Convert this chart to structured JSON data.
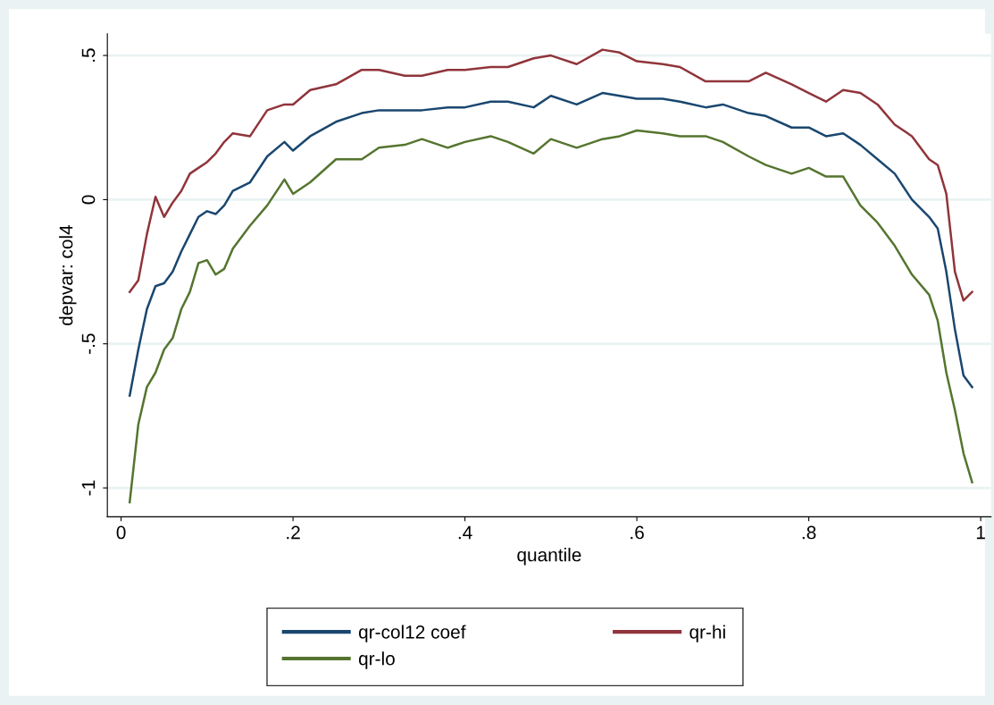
{
  "chart_data": {
    "type": "line",
    "xlabel": "quantile",
    "ylabel": "depvar: col4",
    "x": [
      0.01,
      0.02,
      0.03,
      0.04,
      0.05,
      0.06,
      0.07,
      0.08,
      0.09,
      0.1,
      0.11,
      0.12,
      0.13,
      0.15,
      0.17,
      0.19,
      0.2,
      0.22,
      0.25,
      0.28,
      0.3,
      0.33,
      0.35,
      0.38,
      0.4,
      0.43,
      0.45,
      0.48,
      0.5,
      0.53,
      0.56,
      0.58,
      0.6,
      0.63,
      0.65,
      0.68,
      0.7,
      0.73,
      0.75,
      0.78,
      0.8,
      0.82,
      0.84,
      0.86,
      0.88,
      0.9,
      0.92,
      0.94,
      0.95,
      0.96,
      0.97,
      0.98,
      0.99
    ],
    "series": [
      {
        "name": "qr-col12 coef",
        "color": "#1a476f",
        "values": [
          -0.68,
          -0.52,
          -0.38,
          -0.3,
          -0.29,
          -0.25,
          -0.18,
          -0.12,
          -0.06,
          -0.04,
          -0.05,
          -0.02,
          0.03,
          0.06,
          0.15,
          0.2,
          0.17,
          0.22,
          0.27,
          0.3,
          0.31,
          0.31,
          0.31,
          0.32,
          0.32,
          0.34,
          0.34,
          0.32,
          0.36,
          0.33,
          0.37,
          0.36,
          0.35,
          0.35,
          0.34,
          0.32,
          0.33,
          0.3,
          0.29,
          0.25,
          0.25,
          0.22,
          0.23,
          0.19,
          0.14,
          0.09,
          0.0,
          -0.06,
          -0.1,
          -0.25,
          -0.45,
          -0.61,
          -0.65
        ]
      },
      {
        "name": "qr-hi",
        "color": "#90353b",
        "values": [
          -0.32,
          -0.28,
          -0.12,
          0.01,
          -0.06,
          -0.01,
          0.03,
          0.09,
          0.11,
          0.13,
          0.16,
          0.2,
          0.23,
          0.22,
          0.31,
          0.33,
          0.33,
          0.38,
          0.4,
          0.45,
          0.45,
          0.43,
          0.43,
          0.45,
          0.45,
          0.46,
          0.46,
          0.49,
          0.5,
          0.47,
          0.52,
          0.51,
          0.48,
          0.47,
          0.46,
          0.41,
          0.41,
          0.41,
          0.44,
          0.4,
          0.37,
          0.34,
          0.38,
          0.37,
          0.33,
          0.26,
          0.22,
          0.14,
          0.12,
          0.02,
          -0.25,
          -0.35,
          -0.32
        ]
      },
      {
        "name": "qr-lo",
        "color": "#55752f",
        "values": [
          -1.05,
          -0.78,
          -0.65,
          -0.6,
          -0.52,
          -0.48,
          -0.38,
          -0.32,
          -0.22,
          -0.21,
          -0.26,
          -0.24,
          -0.17,
          -0.09,
          -0.02,
          0.07,
          0.02,
          0.06,
          0.14,
          0.14,
          0.18,
          0.19,
          0.21,
          0.18,
          0.2,
          0.22,
          0.2,
          0.16,
          0.21,
          0.18,
          0.21,
          0.22,
          0.24,
          0.23,
          0.22,
          0.22,
          0.2,
          0.15,
          0.12,
          0.09,
          0.11,
          0.08,
          0.08,
          -0.02,
          -0.08,
          -0.16,
          -0.26,
          -0.33,
          -0.42,
          -0.6,
          -0.73,
          -0.88,
          -0.98
        ]
      }
    ],
    "xlim": [
      -0.016,
      1.012
    ],
    "ylim": [
      -1.1,
      0.575
    ],
    "xticks": [
      0,
      {
        "value": 0.2,
        "label": ".2"
      },
      {
        "value": 0.4,
        "label": ".4"
      },
      {
        "value": 0.6,
        "label": ".6"
      },
      {
        "value": 0.8,
        "label": ".8"
      },
      1
    ],
    "yticks": [
      {
        "value": -1,
        "label": "-1"
      },
      {
        "value": -0.5,
        "label": "-.5"
      },
      0,
      {
        "value": 0.5,
        "label": ".5"
      }
    ],
    "grid": "y",
    "legend": "bottom",
    "marker": "none",
    "line_style": "solid"
  }
}
